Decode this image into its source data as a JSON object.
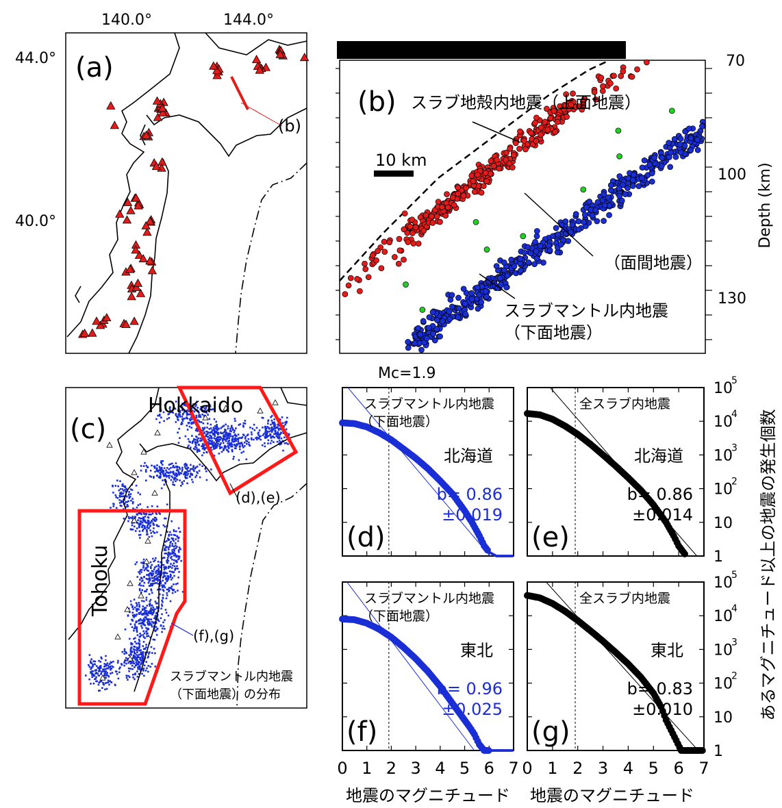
{
  "panel_a": {
    "label": "(a)",
    "lon_ticks": [
      "140.0°",
      "144.0°"
    ],
    "lat_ticks": [
      "44.0°",
      "40.0°"
    ],
    "section_label": "(b)",
    "marker_color": "#e21b1b"
  },
  "panel_b": {
    "label": "(b)",
    "depth_label": "Depth (km)",
    "depth_ticks": [
      "70",
      "100",
      "130"
    ],
    "scale_label": "10 km",
    "annotations": {
      "upper": "スラブ地殻内地震（上面地震）",
      "interplane": "（面間地震）",
      "lower_1": "スラブマントル内地震",
      "lower_2": "（下面地震）"
    },
    "colors": {
      "upper": "#e21b1b",
      "lower": "#1a2ed6",
      "interplane": "#22d022"
    }
  },
  "panel_c": {
    "label": "(c)",
    "region_hokkaido": "Hokkaido",
    "region_tohoku": "Tohoku",
    "link_de": "(d),(e)",
    "link_fg": "(f),(g)",
    "caption_1": "スラブマントル内地震",
    "caption_2": "（下面地震）の分布",
    "color": "#1a2ed6"
  },
  "mc_label": "Mc=1.9",
  "y_axis_label": "あるマグニチュード以上の地震の発生個数",
  "x_axis_label": "地震のマグニチュード",
  "y_tick_labels": [
    "1",
    "10",
    "10^2",
    "10^3",
    "10^4",
    "10^5"
  ],
  "chart_data": [
    {
      "type": "scatter",
      "panel": "(d)",
      "title_1": "スラブマントル内地震",
      "title_2": "（下面地震）",
      "region": "北海道",
      "b_value": "b= 0.86",
      "b_error": "±0.019",
      "color": "#1a2ed6",
      "mc": 1.9,
      "log_scale_y": true,
      "xlim": [
        0,
        7
      ],
      "ylim": [
        1,
        100000
      ],
      "xticks": [
        0,
        1,
        2,
        3,
        4,
        5,
        6,
        7
      ],
      "fit": {
        "b": 0.86,
        "log10_intercept": 5.19
      },
      "curve": [
        [
          0,
          9000
        ],
        [
          0.5,
          8500
        ],
        [
          1,
          6800
        ],
        [
          1.5,
          4600
        ],
        [
          2,
          2800
        ],
        [
          2.5,
          1500
        ],
        [
          3,
          800
        ],
        [
          3.5,
          390
        ],
        [
          4,
          170
        ],
        [
          4.5,
          70
        ],
        [
          5,
          22
        ],
        [
          5.3,
          10
        ],
        [
          5.6,
          4
        ],
        [
          5.8,
          2
        ],
        [
          6,
          1.3
        ],
        [
          6.3,
          1
        ],
        [
          7,
          1
        ]
      ]
    },
    {
      "type": "scatter",
      "panel": "(e)",
      "title_1": "全スラブ内地震",
      "title_2": "",
      "region": "北海道",
      "b_value": "b= 0.86",
      "b_error": "±0.014",
      "color": "#000000",
      "mc": 1.9,
      "log_scale_y": true,
      "xlim": [
        0,
        7
      ],
      "ylim": [
        1,
        100000
      ],
      "xticks": [
        0,
        1,
        2,
        3,
        4,
        5,
        6,
        7
      ],
      "fit": {
        "b": 0.86,
        "log10_intercept": 5.78
      },
      "curve": [
        [
          0,
          17000
        ],
        [
          0.5,
          15500
        ],
        [
          1,
          11500
        ],
        [
          1.5,
          7200
        ],
        [
          2,
          4100
        ],
        [
          2.5,
          2100
        ],
        [
          3,
          1000
        ],
        [
          3.5,
          470
        ],
        [
          4,
          210
        ],
        [
          4.5,
          90
        ],
        [
          5,
          33
        ],
        [
          5.5,
          10
        ],
        [
          5.8,
          4
        ],
        [
          6,
          2
        ],
        [
          6.3,
          1
        ]
      ]
    },
    {
      "type": "scatter",
      "panel": "(f)",
      "title_1": "スラブマントル内地震",
      "title_2": "（下面地震）",
      "region": "東北",
      "b_value": "b= 0.96",
      "b_error": "±0.025",
      "color": "#1a2ed6",
      "mc": 1.9,
      "log_scale_y": true,
      "xlim": [
        0,
        7
      ],
      "ylim": [
        1,
        100000
      ],
      "xticks": [
        0,
        1,
        2,
        3,
        4,
        5,
        6,
        7
      ],
      "fit": {
        "b": 0.96,
        "log10_intercept": 5.18
      },
      "curve": [
        [
          0,
          8000
        ],
        [
          0.5,
          7600
        ],
        [
          1,
          6000
        ],
        [
          1.5,
          4000
        ],
        [
          2,
          2300
        ],
        [
          2.5,
          1150
        ],
        [
          3,
          530
        ],
        [
          3.5,
          220
        ],
        [
          4,
          80
        ],
        [
          4.5,
          25
        ],
        [
          4.9,
          10
        ],
        [
          5.2,
          5
        ],
        [
          5.4,
          3
        ],
        [
          5.6,
          1.5
        ],
        [
          5.8,
          1
        ],
        [
          7,
          1
        ]
      ]
    },
    {
      "type": "scatter",
      "panel": "(g)",
      "title_1": "全スラブ内地震",
      "title_2": "",
      "region": "東北",
      "b_value": "b= 0.83",
      "b_error": "±0.010",
      "color": "#000000",
      "mc": 1.9,
      "log_scale_y": true,
      "xlim": [
        0,
        7
      ],
      "ylim": [
        1,
        100000
      ],
      "xticks": [
        0,
        1,
        2,
        3,
        4,
        5,
        6,
        7
      ],
      "fit": {
        "b": 0.83,
        "log10_intercept": 5.62
      },
      "curve": [
        [
          0,
          40000
        ],
        [
          0.5,
          34000
        ],
        [
          1,
          23000
        ],
        [
          1.5,
          13500
        ],
        [
          2,
          7200
        ],
        [
          2.5,
          3600
        ],
        [
          3,
          1750
        ],
        [
          3.5,
          820
        ],
        [
          4,
          370
        ],
        [
          4.5,
          150
        ],
        [
          5,
          50
        ],
        [
          5.3,
          20
        ],
        [
          5.5,
          8
        ],
        [
          5.7,
          4
        ],
        [
          5.9,
          2
        ],
        [
          6.1,
          1
        ],
        [
          7,
          1
        ]
      ]
    }
  ]
}
